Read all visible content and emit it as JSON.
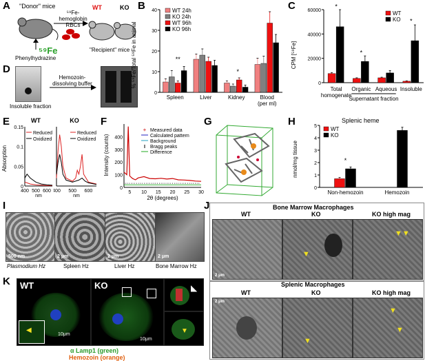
{
  "panels": [
    "A",
    "B",
    "C",
    "D",
    "E",
    "F",
    "G",
    "H",
    "I",
    "J",
    "K"
  ],
  "A": {
    "donor": "\"Donor\" mice",
    "label59": "⁵⁹Fe-hemoglobin RBCs",
    "fe": "⁵⁹Fe",
    "phenyl": "Phenylhydrazine",
    "wt": "WT",
    "ko": "KO",
    "recipient": "\"Recipient\" mice"
  },
  "D": {
    "insoluble": "Insoluble fraction",
    "buffer": "Hemozoin-dissolving buffer"
  },
  "B": {
    "ylabel": "% ⁵⁹Fe/Total ⁵⁹Fe in animal",
    "legend": [
      "WT 24h",
      "KO 24h",
      "WT 96h",
      "KO 96h"
    ],
    "cats": [
      "Spleen",
      "Liver",
      "Kidney",
      "Blood (per ml)"
    ],
    "sig": [
      "**",
      "*"
    ]
  },
  "C": {
    "ylabel": "CPM [⁵⁹Fe]",
    "legend": [
      "WT",
      "KO"
    ],
    "cats": [
      "Total homogenate",
      "Organic",
      "Aqueous",
      "Insoluble"
    ],
    "group": "Supernatant fraction",
    "sig": [
      "*",
      "*",
      "*"
    ]
  },
  "E": {
    "ylabel": "Absorption",
    "xlabel": "nm",
    "wt": "WT",
    "ko": "KO",
    "legend": [
      "Reduced",
      "Oxidized"
    ]
  },
  "F": {
    "ylabel": "Intensity (counts)",
    "xlabel": "2θ (degrees)",
    "legend": [
      "Measured data",
      "Calculated pattern",
      "Background",
      "Bragg peaks",
      "Difference"
    ]
  },
  "H": {
    "title": "Splenic heme",
    "ylabel": "nmol/mg tissue",
    "legend": [
      "WT",
      "KO"
    ],
    "cats": [
      "Non-hemozoin",
      "Hemozoin"
    ],
    "sig": [
      "*",
      "****"
    ]
  },
  "I": {
    "labels": [
      "Plasmodium Hz",
      "Spleen Hz",
      "Liver Hz",
      "Bone Marrow Hz"
    ],
    "scales": [
      "500 nm",
      "2 μm",
      "2 μm",
      "2 μm"
    ]
  },
  "J": {
    "bm": "Bone Marrow Macrophages",
    "sp": "Splenic Macrophages",
    "cols": [
      "WT",
      "KO",
      "KO high mag"
    ],
    "scale": "2 μm"
  },
  "K": {
    "wt": "WT",
    "ko": "KO",
    "scale": "10μm",
    "lamp": "α Lamp1 (green)",
    "hz": "Hemozoin (orange)"
  },
  "chart_data": [
    {
      "type": "bar",
      "panel": "B",
      "ylabel": "% ⁵⁹Fe/Total ⁵⁹Fe in animal",
      "categories": [
        "Spleen",
        "Liver",
        "Kidney",
        "Blood (per ml)"
      ],
      "ylim": [
        0,
        40
      ],
      "yticks": [
        0,
        10,
        20,
        30,
        40
      ],
      "series": [
        {
          "name": "WT 24h",
          "color": "#f08080",
          "values": [
            5,
            16,
            4.5,
            13.5
          ]
        },
        {
          "name": "KO 24h",
          "color": "#808080",
          "values": [
            7.5,
            18,
            3,
            14
          ]
        },
        {
          "name": "WT 96h",
          "color": "#ee1111",
          "values": [
            4.5,
            15,
            6,
            33.5
          ]
        },
        {
          "name": "KO 96h",
          "color": "#000000",
          "values": [
            10.5,
            13,
            2.5,
            24
          ]
        }
      ],
      "errors": [
        [
          1.5,
          2.5,
          1,
          3
        ],
        [
          3,
          3,
          1,
          3.5
        ],
        [
          1,
          2,
          1,
          5.5
        ],
        [
          2,
          2.5,
          1,
          4
        ]
      ]
    },
    {
      "type": "bar",
      "panel": "C",
      "ylabel": "CPM [⁵⁹Fe]",
      "categories": [
        "Total homogenate",
        "Organic",
        "Aqueous",
        "Insoluble"
      ],
      "ylim": [
        0,
        60000
      ],
      "yticks": [
        0,
        20000,
        40000,
        60000
      ],
      "series": [
        {
          "name": "WT",
          "color": "#ee1111",
          "values": [
            7500,
            3500,
            4000,
            1200
          ]
        },
        {
          "name": "KO",
          "color": "#000000",
          "values": [
            46000,
            17500,
            8000,
            34500
          ]
        }
      ],
      "errors": [
        [
          800,
          500,
          500,
          300
        ],
        [
          14000,
          4500,
          2000,
          13000
        ]
      ]
    },
    {
      "type": "line",
      "panel": "E-WT",
      "xlim": [
        400,
        650
      ],
      "ylim": [
        0,
        0.15
      ],
      "yticks": [
        0,
        0.05,
        0.1,
        0.15
      ],
      "xticks": [
        400,
        500,
        600
      ],
      "series": [
        {
          "name": "Reduced",
          "color": "#dd2222",
          "x": [
            400,
            420,
            450,
            500,
            550,
            600,
            650
          ],
          "y": [
            0.01,
            0.008,
            0.005,
            0.003,
            0.002,
            0.001,
            0.001
          ]
        },
        {
          "name": "Oxidized",
          "color": "#000000",
          "x": [
            400,
            420,
            450,
            500,
            550,
            600,
            650
          ],
          "y": [
            0.02,
            0.03,
            0.02,
            0.01,
            0.005,
            0.003,
            0.002
          ]
        }
      ]
    },
    {
      "type": "line",
      "panel": "E-KO",
      "xlim": [
        400,
        650
      ],
      "ylim": [
        0,
        0.15
      ],
      "xticks": [
        400,
        500,
        600
      ],
      "series": [
        {
          "name": "Reduced",
          "color": "#dd2222",
          "x": [
            400,
            410,
            420,
            430,
            440,
            460,
            500,
            520,
            530,
            540,
            550,
            560,
            570,
            600,
            650
          ],
          "y": [
            0.02,
            0.09,
            0.13,
            0.1,
            0.05,
            0.02,
            0.012,
            0.02,
            0.04,
            0.03,
            0.05,
            0.08,
            0.03,
            0.01,
            0.005
          ]
        },
        {
          "name": "Oxidized",
          "color": "#000000",
          "x": [
            400,
            410,
            420,
            430,
            440,
            460,
            500,
            540,
            560,
            580,
            600,
            650
          ],
          "y": [
            0.03,
            0.06,
            0.08,
            0.06,
            0.03,
            0.015,
            0.01,
            0.015,
            0.02,
            0.012,
            0.008,
            0.004
          ]
        }
      ]
    },
    {
      "type": "line",
      "panel": "F",
      "xlabel": "2θ (degrees)",
      "xlim": [
        3,
        30
      ],
      "ylim": [
        0,
        500
      ],
      "yticks": [
        0,
        100,
        200,
        300,
        400
      ],
      "xticks": [
        5,
        10,
        15,
        20,
        25,
        30
      ],
      "series": [
        {
          "name": "Measured data",
          "color": "#cc0000",
          "x": [
            3,
            4,
            4.5,
            5,
            6,
            7,
            8,
            10,
            12,
            14,
            16,
            18,
            20,
            22,
            24,
            26,
            28,
            30
          ],
          "y": [
            120,
            100,
            480,
            90,
            70,
            60,
            75,
            85,
            70,
            68,
            72,
            66,
            70,
            60,
            58,
            55,
            50,
            48
          ]
        }
      ]
    },
    {
      "type": "bar",
      "panel": "H",
      "title": "Splenic heme",
      "ylabel": "nmol/mg tissue",
      "categories": [
        "Non-hemozoin",
        "Hemozoin"
      ],
      "ylim": [
        0,
        5
      ],
      "yticks": [
        0,
        1,
        2,
        3,
        4,
        5
      ],
      "series": [
        {
          "name": "WT",
          "color": "#ee1111",
          "values": [
            0.7,
            0
          ]
        },
        {
          "name": "KO",
          "color": "#000000",
          "values": [
            1.5,
            4.6
          ]
        }
      ],
      "errors": [
        [
          0.1,
          0
        ],
        [
          0.15,
          0.25
        ]
      ]
    }
  ]
}
